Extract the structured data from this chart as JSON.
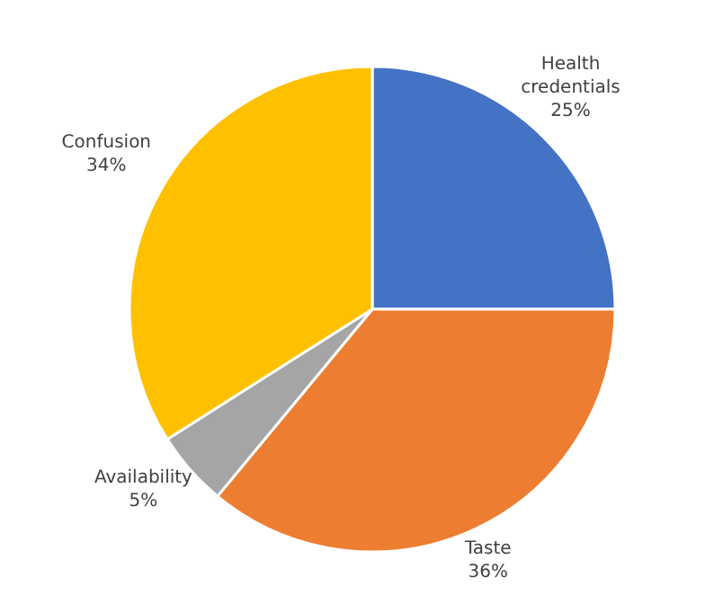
{
  "chart_data": {
    "type": "pie",
    "categories": [
      "Health credentials",
      "Taste",
      "Availability",
      "Confusion"
    ],
    "values": [
      25,
      36,
      5,
      34
    ],
    "colors": [
      "#4472c4",
      "#ed7d31",
      "#a5a5a5",
      "#ffc000"
    ],
    "value_labels": [
      "25%",
      "36%",
      "5%",
      "34%"
    ]
  }
}
